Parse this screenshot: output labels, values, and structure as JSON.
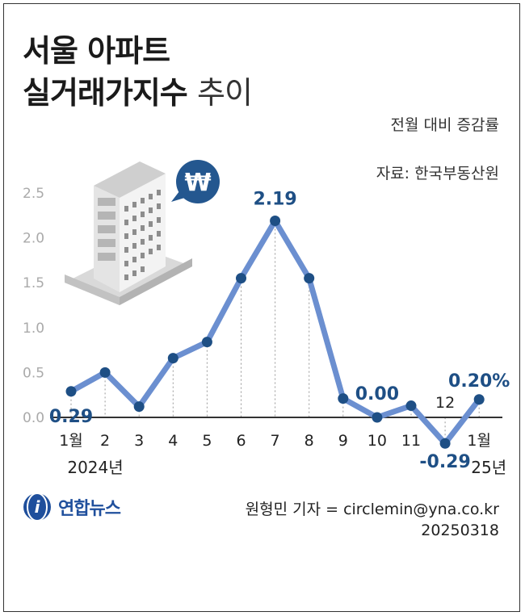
{
  "header": {
    "title_line1": "서울 아파트",
    "title_line2_bold": "실거래가지수",
    "title_line2_light": "추이"
  },
  "unit_label": "전월 대비 증감률",
  "source_label": "자료: 한국부동산원",
  "credit": {
    "reporter": "원형민 기자 = circlemin@yna.co.kr",
    "date": "20250318"
  },
  "logo": {
    "text": "연합뉴스"
  },
  "colors": {
    "line": "#6b8fd0",
    "marker": "#1e4f85",
    "axis_text": "#aaaaaa",
    "label": "#1e4f85"
  },
  "chart_data": {
    "type": "line",
    "categories": [
      "1월",
      "2",
      "3",
      "4",
      "5",
      "6",
      "7",
      "8",
      "9",
      "10",
      "11",
      "12",
      "1월"
    ],
    "year_labels": [
      "2024년",
      "",
      "",
      "",
      "",
      "",
      "",
      "",
      "",
      "",
      "",
      "",
      "25년"
    ],
    "values": [
      0.29,
      0.5,
      0.12,
      0.66,
      0.84,
      1.55,
      2.19,
      1.55,
      0.21,
      0.0,
      0.13,
      -0.29,
      0.2
    ],
    "data_labels": [
      "0.29",
      "",
      "",
      "",
      "",
      "",
      "2.19",
      "",
      "",
      "0.00",
      "",
      "-0.29",
      "0.20%"
    ],
    "ylim": [
      -0.3,
      2.5
    ],
    "yticks": [
      "2.5",
      "2.0",
      "1.5",
      "1.0",
      "0.5",
      "0.0"
    ],
    "grid": "vertical-dotted"
  }
}
